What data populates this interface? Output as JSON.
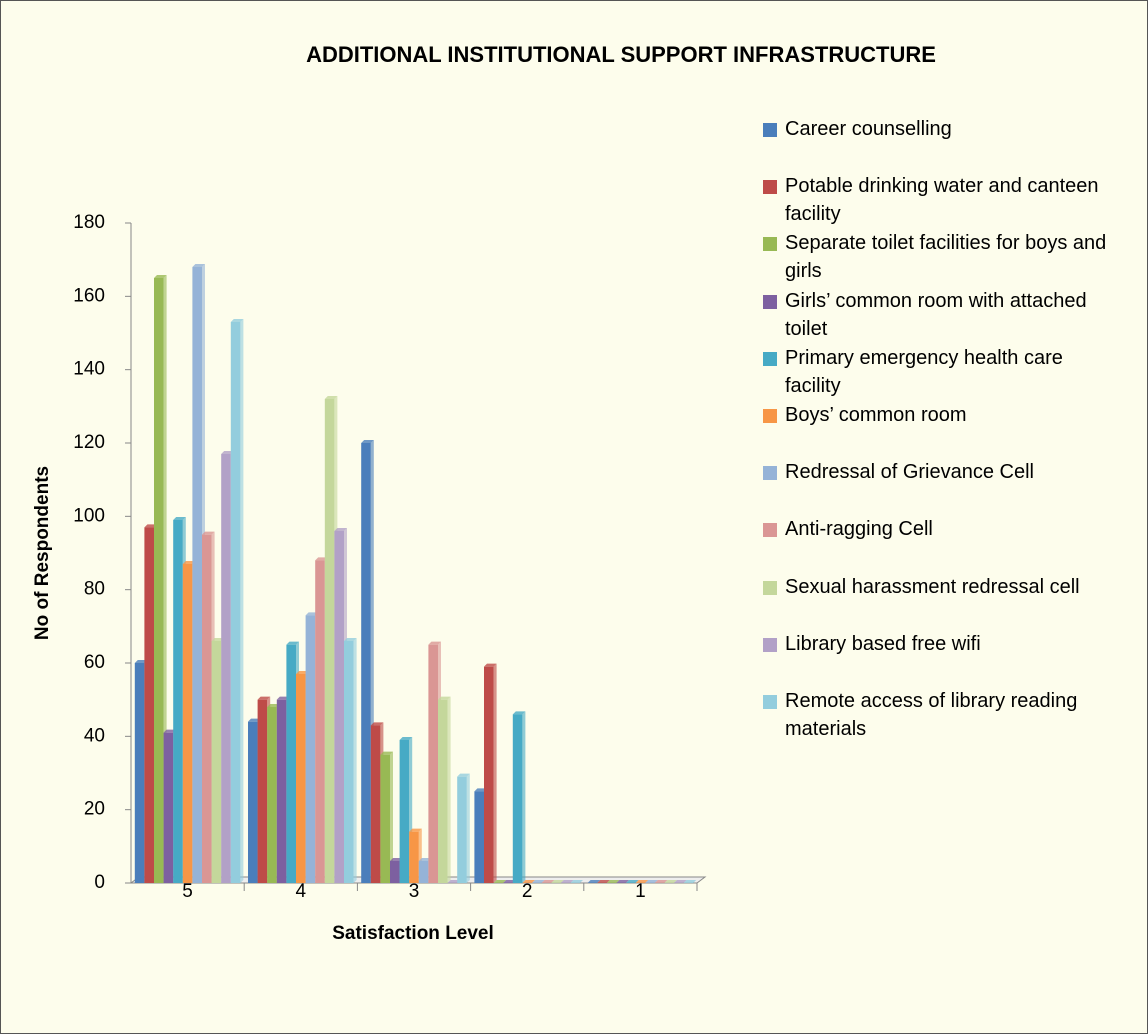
{
  "chart_data": {
    "type": "bar",
    "title": "ADDITIONAL INSTITUTIONAL SUPPORT INFRASTRUCTURE",
    "xlabel": "Satisfaction Level",
    "ylabel": "No of Respondents",
    "categories": [
      "5",
      "4",
      "3",
      "2",
      "1"
    ],
    "ylim": [
      0,
      180
    ],
    "yticks": [
      0,
      20,
      40,
      60,
      80,
      100,
      120,
      140,
      160,
      180
    ],
    "series": [
      {
        "name": "Career counselling",
        "color": "#4a7ebb",
        "values": [
          60,
          44,
          120,
          25,
          0
        ]
      },
      {
        "name": "Potable drinking water and canteen facility",
        "color": "#be4b48",
        "values": [
          97,
          50,
          43,
          59,
          0
        ]
      },
      {
        "name": "Separate toilet facilities for boys and girls",
        "color": "#98b954",
        "values": [
          165,
          48,
          35,
          0,
          0
        ]
      },
      {
        "name": "Girls’ common room with attached toilet",
        "color": "#7d60a0",
        "values": [
          41,
          50,
          6,
          0,
          0
        ]
      },
      {
        "name": "Primary emergency health care facility",
        "color": "#46aac5",
        "values": [
          99,
          65,
          39,
          46,
          0
        ]
      },
      {
        "name": "Boys’ common room",
        "color": "#f79646",
        "values": [
          87,
          57,
          14,
          0,
          0
        ]
      },
      {
        "name": "Redressal of Grievance Cell",
        "color": "#95b3d7",
        "values": [
          168,
          73,
          6,
          0,
          0
        ]
      },
      {
        "name": "Anti-ragging Cell",
        "color": "#da9694",
        "values": [
          95,
          88,
          65,
          0,
          0
        ]
      },
      {
        "name": "Sexual harassment redressal cell",
        "color": "#c4d79b",
        "values": [
          66,
          132,
          50,
          0,
          0
        ]
      },
      {
        "name": "Library based free wifi",
        "color": "#b2a1c7",
        "values": [
          117,
          96,
          0,
          0,
          0
        ]
      },
      {
        "name": "Remote access of library reading materials",
        "color": "#93cddd",
        "values": [
          153,
          66,
          29,
          0,
          0
        ]
      }
    ]
  }
}
